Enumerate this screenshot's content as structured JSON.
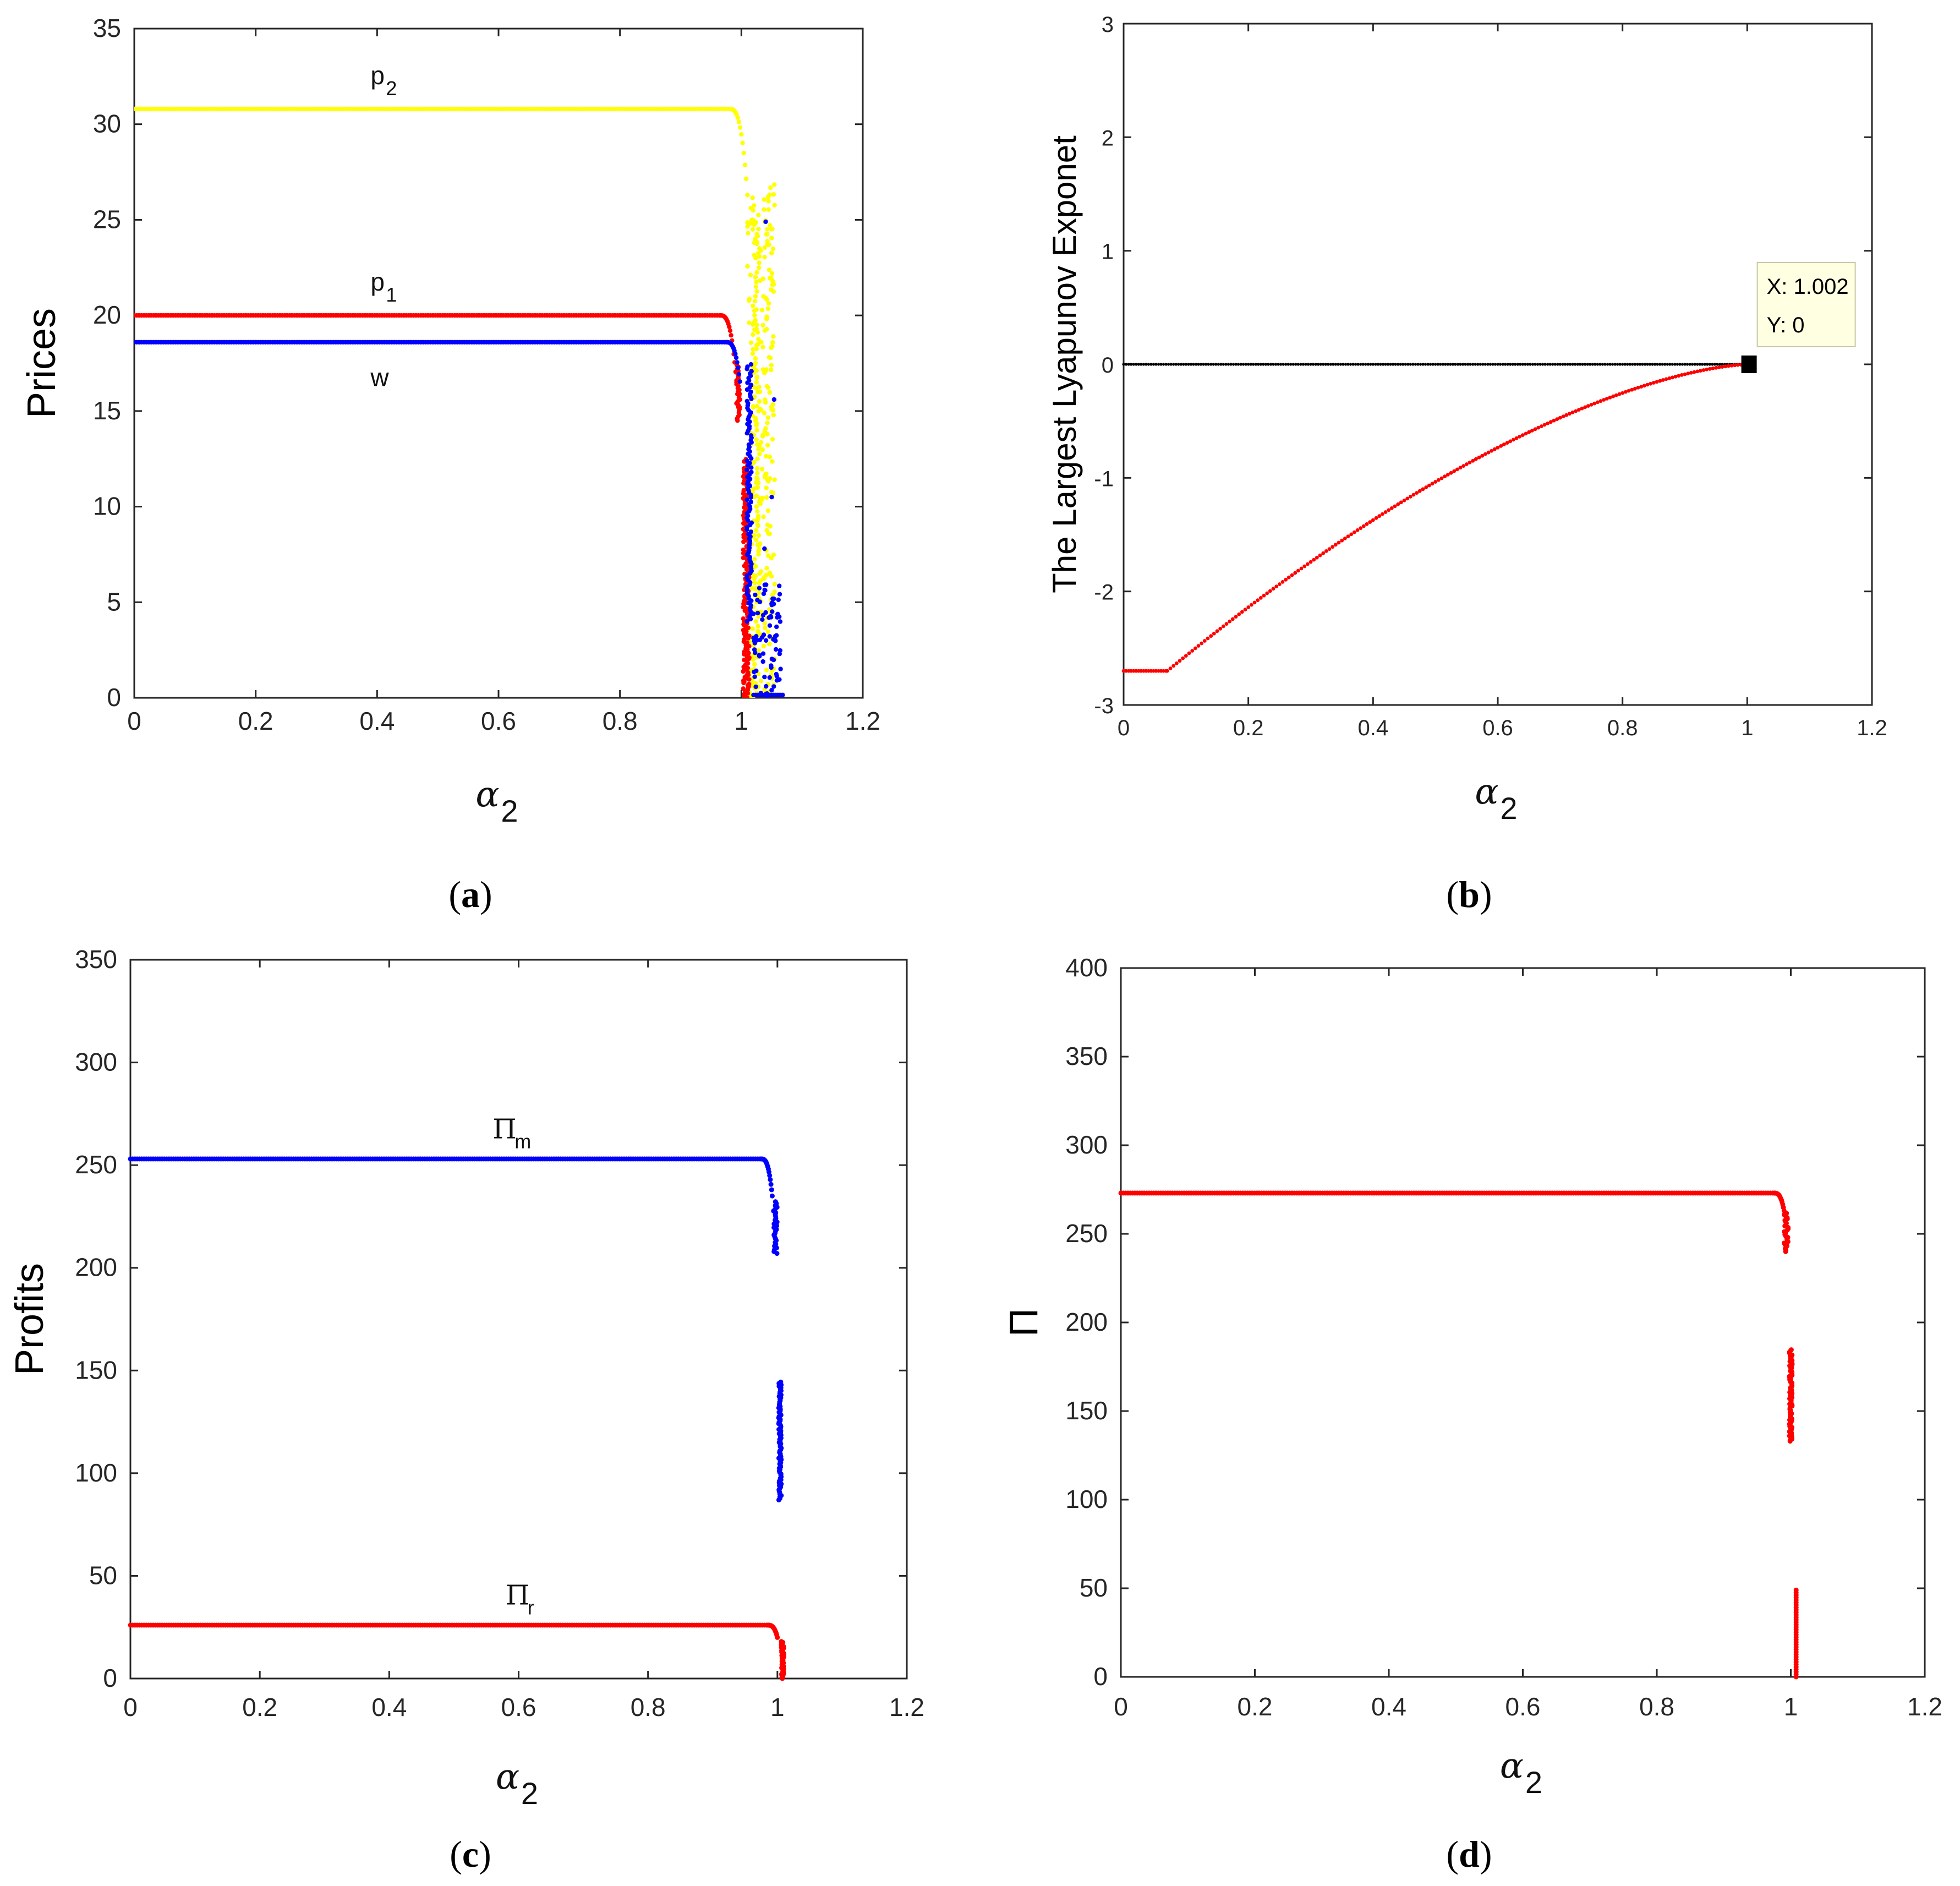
{
  "chart_data": [
    {
      "id": "a",
      "type": "scatter",
      "panel_label": "a",
      "ylabel": "Prices",
      "xlabel_symbol": "α",
      "xlabel_subscript": "2",
      "xlim": [
        0,
        1.2
      ],
      "ylim": [
        0,
        35
      ],
      "xticks": [
        "0",
        "0.2",
        "0.4",
        "0.6",
        "0.8",
        "1",
        "1.2"
      ],
      "yticks": [
        "0",
        "5",
        "10",
        "15",
        "20",
        "25",
        "30",
        "35"
      ],
      "series": [
        {
          "name": "p2",
          "color": "#ffff00",
          "stable_value": 30.8,
          "collapse_start": 0.98
        },
        {
          "name": "p1",
          "color": "#ff0000",
          "stable_value": 20.0,
          "collapse_start": 0.97
        },
        {
          "name": "w",
          "color": "#0000ff",
          "stable_value": 18.6,
          "collapse_start": 0.98
        }
      ],
      "annotations": [
        {
          "text": "p",
          "sub": "2",
          "x": 0.4,
          "y": 32.1
        },
        {
          "text": "p",
          "sub": "1",
          "x": 0.4,
          "y": 21.3
        },
        {
          "text": "w",
          "sub": "",
          "x": 0.4,
          "y": 16.3
        }
      ]
    },
    {
      "id": "b",
      "type": "scatter",
      "panel_label": "b",
      "ylabel": "The Largest Lyapunov Exponet",
      "xlabel_symbol": "α",
      "xlabel_subscript": "2",
      "xlim": [
        0,
        1.2
      ],
      "ylim": [
        -3,
        3
      ],
      "xticks": [
        "0",
        "0.2",
        "0.4",
        "0.6",
        "0.8",
        "1",
        "1.2"
      ],
      "yticks": [
        "-3",
        "-2",
        "-1",
        "0",
        "1",
        "2",
        "3"
      ],
      "series": [
        {
          "name": "zero line",
          "color": "#000000",
          "x_range": [
            0,
            1.002
          ],
          "value": 0
        },
        {
          "name": "LLE",
          "color": "#ff0000",
          "flat_value": -2.7,
          "flat_until": 0.07,
          "end_x": 1.002,
          "end_y": 0
        }
      ],
      "datatip": {
        "x_label": "X: 1.002",
        "y_label": "Y: 0",
        "x": 1.002,
        "y": 0
      }
    },
    {
      "id": "c",
      "type": "scatter",
      "panel_label": "c",
      "ylabel": "Profits",
      "xlabel_symbol": "α",
      "xlabel_subscript": "2",
      "xlim": [
        0,
        1.2
      ],
      "ylim": [
        0,
        350
      ],
      "xticks": [
        "0",
        "0.2",
        "0.4",
        "0.6",
        "0.8",
        "1",
        "1.2"
      ],
      "yticks": [
        "0",
        "50",
        "100",
        "150",
        "200",
        "250",
        "300",
        "350"
      ],
      "series": [
        {
          "name": "Πm",
          "color": "#0000ff",
          "stable_value": 253,
          "drop_to": 207,
          "chaos_range": [
            87,
            145
          ],
          "chaos_x": 1.004
        },
        {
          "name": "Πr",
          "color": "#ff0000",
          "stable_value": 26,
          "drop_to": 0
        }
      ],
      "annotations": [
        {
          "text": "Π",
          "sub": "m",
          "x": 0.57,
          "y": 263
        },
        {
          "text": "Π",
          "sub": "r",
          "x": 0.59,
          "y": 36
        }
      ]
    },
    {
      "id": "d",
      "type": "scatter",
      "panel_label": "d",
      "ylabel": "Π",
      "xlabel_symbol": "α",
      "xlabel_subscript": "2",
      "xlim": [
        0,
        1.2
      ],
      "ylim": [
        0,
        400
      ],
      "xticks": [
        "0",
        "0.2",
        "0.4",
        "0.6",
        "0.8",
        "1",
        "1.2"
      ],
      "yticks": [
        "0",
        "50",
        "100",
        "150",
        "200",
        "250",
        "300",
        "350",
        "400"
      ],
      "series": [
        {
          "name": "Π",
          "color": "#ff0000",
          "stable_value": 273,
          "drop_to": 240,
          "chaos_range": [
            133,
            185
          ],
          "chaos_x": 1.0,
          "tail_range": [
            0,
            50
          ],
          "tail_x": 1.008
        }
      ]
    }
  ]
}
